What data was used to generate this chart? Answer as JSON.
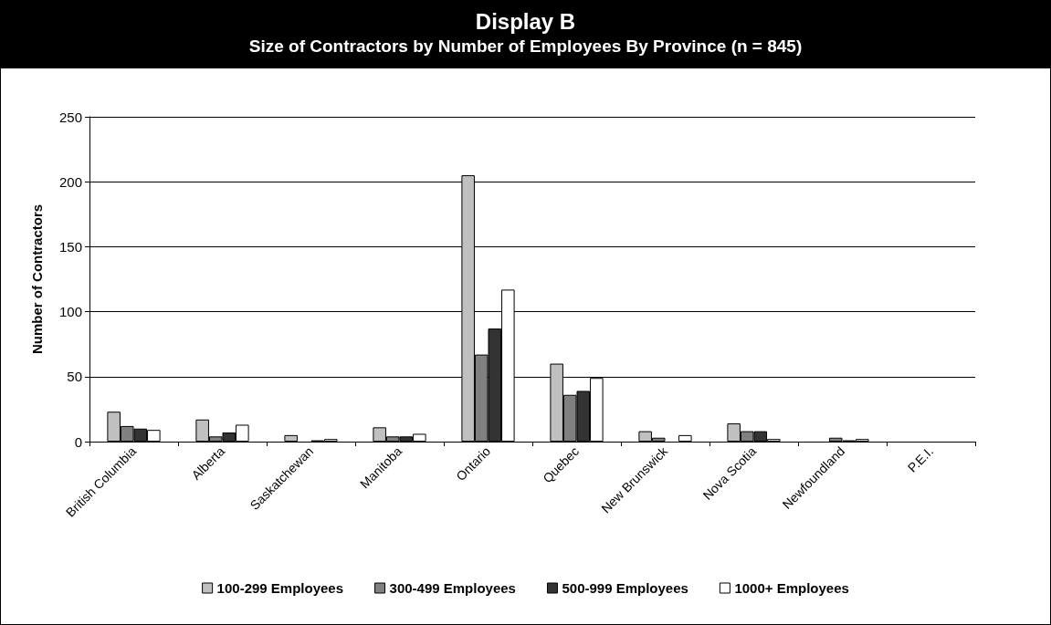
{
  "chart_data": {
    "type": "bar",
    "title": "Display B",
    "subtitle": "Size of Contractors by Number of Employees By Province (n = 845)",
    "ylabel": "Number of Contractors",
    "categories": [
      "British Columbia",
      "Alberta",
      "Saskatchewan",
      "Manitoba",
      "Ontario",
      "Quebec",
      "New Brunswick",
      "Nova Scotia",
      "Newfoundland",
      "P.E.I."
    ],
    "series": [
      {
        "name": "100-299 Employees",
        "color": "#c0c0c0",
        "values": [
          23,
          17,
          5,
          11,
          205,
          60,
          8,
          14,
          0,
          0
        ]
      },
      {
        "name": "300-499 Employees",
        "color": "#808080",
        "values": [
          12,
          4,
          0,
          4,
          67,
          36,
          3,
          8,
          3,
          0
        ]
      },
      {
        "name": "500-999 Employees",
        "color": "#333333",
        "values": [
          10,
          7,
          1,
          4,
          87,
          39,
          0,
          8,
          1,
          0
        ]
      },
      {
        "name": "1000+ Employees",
        "color": "#ffffff",
        "values": [
          9,
          13,
          2,
          6,
          117,
          49,
          5,
          2,
          2,
          0
        ]
      }
    ],
    "ylim": [
      0,
      250
    ],
    "yticks": [
      0,
      50,
      100,
      150,
      200,
      250
    ],
    "grid": "y",
    "legend": "bottom"
  }
}
